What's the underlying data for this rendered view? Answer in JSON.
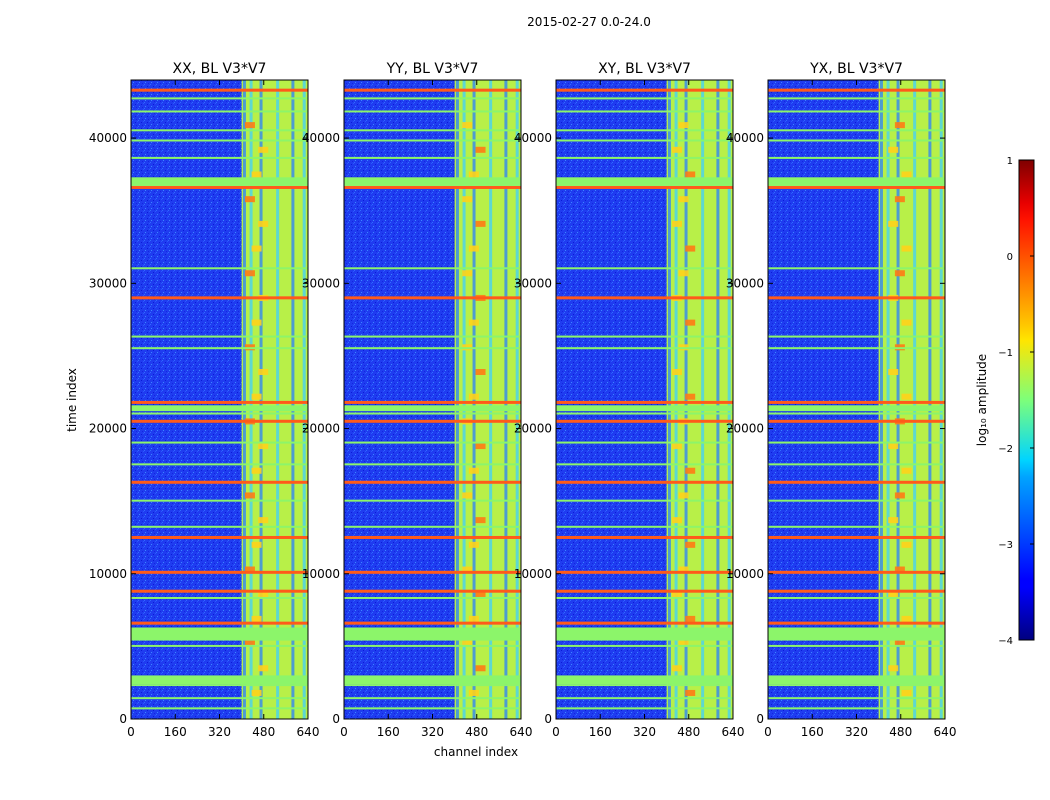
{
  "figure": {
    "suptitle": "2015-02-27 0.0-24.0"
  },
  "chart_data": {
    "type": "heatmap",
    "xlabel": "channel index",
    "ylabel": "time index",
    "xlim": [
      0,
      640
    ],
    "ylim": [
      0,
      44000
    ],
    "xticks": [
      0,
      160,
      320,
      480,
      640
    ],
    "yticks": [
      0,
      10000,
      20000,
      30000,
      40000
    ],
    "panels": [
      {
        "title": "XX, BL V3*V7",
        "band_channels": [
          400,
          640
        ]
      },
      {
        "title": "YY, BL V3*V7",
        "band_channels": [
          400,
          640
        ]
      },
      {
        "title": "XY, BL V3*V7",
        "band_channels": [
          400,
          640
        ]
      },
      {
        "title": "YX, BL V3*V7",
        "band_channels": [
          400,
          640
        ]
      }
    ],
    "horizontal_flag_rows": [
      {
        "t": 43300,
        "level": "high"
      },
      {
        "t": 42700,
        "level": "mid"
      },
      {
        "t": 41800,
        "level": "mid"
      },
      {
        "t": 40500,
        "level": "mid"
      },
      {
        "t": 39800,
        "level": "mid"
      },
      {
        "t": 38600,
        "level": "mid"
      },
      {
        "t": 37000,
        "level": "mid"
      },
      {
        "t": 36600,
        "level": "high"
      },
      {
        "t": 31000,
        "level": "mid"
      },
      {
        "t": 29000,
        "level": "high"
      },
      {
        "t": 26300,
        "level": "mid"
      },
      {
        "t": 25500,
        "level": "mid"
      },
      {
        "t": 21800,
        "level": "high"
      },
      {
        "t": 21000,
        "level": "mid"
      },
      {
        "t": 20500,
        "level": "high"
      },
      {
        "t": 19000,
        "level": "mid"
      },
      {
        "t": 17500,
        "level": "mid"
      },
      {
        "t": 16300,
        "level": "high"
      },
      {
        "t": 15000,
        "level": "mid"
      },
      {
        "t": 13200,
        "level": "mid"
      },
      {
        "t": 12500,
        "level": "high"
      },
      {
        "t": 10100,
        "level": "high"
      },
      {
        "t": 8800,
        "level": "high"
      },
      {
        "t": 8300,
        "level": "mid"
      },
      {
        "t": 6600,
        "level": "high"
      },
      {
        "t": 5800,
        "level": "mid"
      },
      {
        "t": 5000,
        "level": "mid"
      },
      {
        "t": 2800,
        "level": "high"
      },
      {
        "t": 2300,
        "level": "mid"
      },
      {
        "t": 1400,
        "level": "mid"
      },
      {
        "t": 700,
        "level": "mid"
      }
    ],
    "colorbar": {
      "label": "log₁₀ amplitude",
      "range": [
        -4,
        1
      ],
      "ticks": [
        "1",
        "0",
        "−1",
        "−2",
        "−3",
        "−4"
      ],
      "colormap": "jet"
    }
  }
}
